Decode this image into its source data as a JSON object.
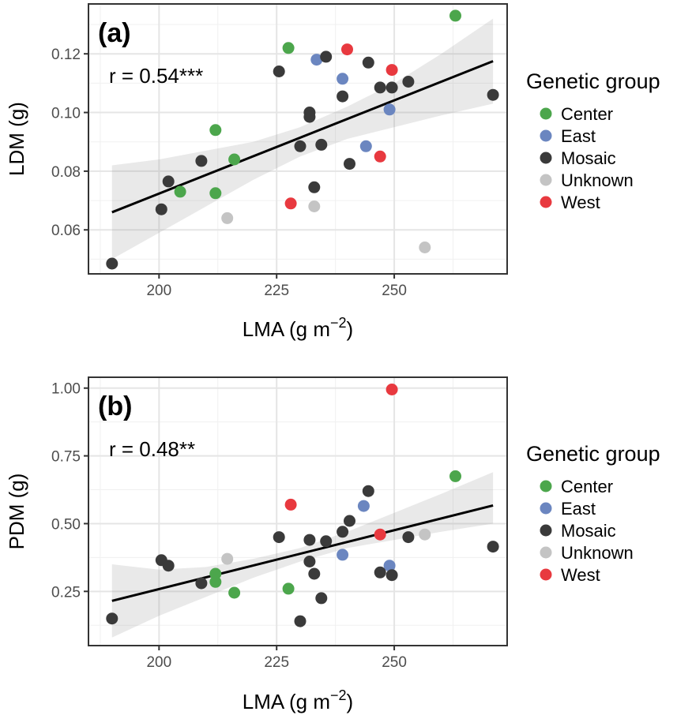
{
  "chart_data": [
    {
      "type": "scatter",
      "panel_label": "(a)",
      "annotation": "r = 0.54***",
      "xlabel": "LMA (g m",
      "xlabel_sup": "−2",
      "xlabel_end": ")",
      "ylabel": "LDM (g)",
      "xlim": [
        185,
        274
      ],
      "ylim": [
        0.045,
        0.137
      ],
      "xticks": [
        200,
        225,
        250
      ],
      "yticks": [
        0.06,
        0.08,
        0.1,
        0.12
      ],
      "ytick_labels": [
        "0.06",
        "0.08",
        "0.10",
        "0.12"
      ],
      "xtick_labels": [
        "200",
        "225",
        "250"
      ],
      "fit": {
        "x": [
          190,
          271
        ],
        "y": [
          0.066,
          0.1175
        ]
      },
      "ci_band": {
        "x": [
          190,
          200,
          210,
          220,
          230,
          240,
          250,
          260,
          271
        ],
        "lower": [
          0.05,
          0.059,
          0.068,
          0.077,
          0.085,
          0.091,
          0.095,
          0.099,
          0.103
        ],
        "upper": [
          0.082,
          0.084,
          0.087,
          0.09,
          0.095,
          0.102,
          0.11,
          0.12,
          0.132
        ]
      },
      "grid": true,
      "points": [
        {
          "x": 263,
          "y": 0.133,
          "group": "Center"
        },
        {
          "x": 227.5,
          "y": 0.122,
          "group": "Center"
        },
        {
          "x": 212,
          "y": 0.094,
          "group": "Center"
        },
        {
          "x": 216,
          "y": 0.084,
          "group": "Center"
        },
        {
          "x": 204.5,
          "y": 0.073,
          "group": "Center"
        },
        {
          "x": 212,
          "y": 0.0725,
          "group": "Center"
        },
        {
          "x": 233.5,
          "y": 0.118,
          "group": "East"
        },
        {
          "x": 239,
          "y": 0.1115,
          "group": "East"
        },
        {
          "x": 249,
          "y": 0.101,
          "group": "East"
        },
        {
          "x": 244,
          "y": 0.0885,
          "group": "East"
        },
        {
          "x": 225.5,
          "y": 0.114,
          "group": "Mosaic"
        },
        {
          "x": 235.5,
          "y": 0.119,
          "group": "Mosaic"
        },
        {
          "x": 244.5,
          "y": 0.117,
          "group": "Mosaic"
        },
        {
          "x": 253,
          "y": 0.1105,
          "group": "Mosaic"
        },
        {
          "x": 247,
          "y": 0.1085,
          "group": "Mosaic"
        },
        {
          "x": 249.5,
          "y": 0.1085,
          "group": "Mosaic"
        },
        {
          "x": 239,
          "y": 0.1055,
          "group": "Mosaic"
        },
        {
          "x": 271,
          "y": 0.106,
          "group": "Mosaic"
        },
        {
          "x": 232,
          "y": 0.1,
          "group": "Mosaic"
        },
        {
          "x": 232,
          "y": 0.0985,
          "group": "Mosaic"
        },
        {
          "x": 230,
          "y": 0.0885,
          "group": "Mosaic"
        },
        {
          "x": 234.5,
          "y": 0.089,
          "group": "Mosaic"
        },
        {
          "x": 209,
          "y": 0.0835,
          "group": "Mosaic"
        },
        {
          "x": 240.5,
          "y": 0.0825,
          "group": "Mosaic"
        },
        {
          "x": 202,
          "y": 0.0765,
          "group": "Mosaic"
        },
        {
          "x": 233,
          "y": 0.0745,
          "group": "Mosaic"
        },
        {
          "x": 200.5,
          "y": 0.067,
          "group": "Mosaic"
        },
        {
          "x": 190,
          "y": 0.0485,
          "group": "Mosaic"
        },
        {
          "x": 214.5,
          "y": 0.064,
          "group": "Unknown"
        },
        {
          "x": 233,
          "y": 0.068,
          "group": "Unknown"
        },
        {
          "x": 256.5,
          "y": 0.054,
          "group": "Unknown"
        },
        {
          "x": 240,
          "y": 0.1215,
          "group": "West"
        },
        {
          "x": 249.5,
          "y": 0.1145,
          "group": "West"
        },
        {
          "x": 247,
          "y": 0.085,
          "group": "West"
        },
        {
          "x": 228,
          "y": 0.069,
          "group": "West"
        }
      ]
    },
    {
      "type": "scatter",
      "panel_label": "(b)",
      "annotation": "r = 0.48**",
      "xlabel": "LMA (g m",
      "xlabel_sup": "−2",
      "xlabel_end": ")",
      "ylabel": "PDM (g)",
      "xlim": [
        185,
        274
      ],
      "ylim": [
        0.05,
        1.04
      ],
      "xticks": [
        200,
        225,
        250
      ],
      "yticks": [
        0.25,
        0.5,
        0.75,
        1.0
      ],
      "ytick_labels": [
        "0.25",
        "0.50",
        "0.75",
        "1.00"
      ],
      "xtick_labels": [
        "200",
        "225",
        "250"
      ],
      "fit": {
        "x": [
          190,
          271
        ],
        "y": [
          0.215,
          0.567
        ]
      },
      "ci_band": {
        "x": [
          190,
          200,
          210,
          220,
          230,
          240,
          250,
          260,
          271
        ],
        "lower": [
          0.08,
          0.16,
          0.23,
          0.3,
          0.36,
          0.41,
          0.44,
          0.47,
          0.5
        ],
        "upper": [
          0.35,
          0.33,
          0.34,
          0.37,
          0.41,
          0.47,
          0.54,
          0.61,
          0.69
        ]
      },
      "grid": true,
      "points": [
        {
          "x": 263,
          "y": 0.675,
          "group": "Center"
        },
        {
          "x": 212,
          "y": 0.315,
          "group": "Center"
        },
        {
          "x": 212,
          "y": 0.285,
          "group": "Center"
        },
        {
          "x": 216,
          "y": 0.245,
          "group": "Center"
        },
        {
          "x": 227.5,
          "y": 0.26,
          "group": "Center"
        },
        {
          "x": 243.5,
          "y": 0.565,
          "group": "East"
        },
        {
          "x": 239,
          "y": 0.385,
          "group": "East"
        },
        {
          "x": 249,
          "y": 0.345,
          "group": "East"
        },
        {
          "x": 244.5,
          "y": 0.62,
          "group": "Mosaic"
        },
        {
          "x": 240.5,
          "y": 0.51,
          "group": "Mosaic"
        },
        {
          "x": 239,
          "y": 0.47,
          "group": "Mosaic"
        },
        {
          "x": 225.5,
          "y": 0.45,
          "group": "Mosaic"
        },
        {
          "x": 232,
          "y": 0.44,
          "group": "Mosaic"
        },
        {
          "x": 235.5,
          "y": 0.435,
          "group": "Mosaic"
        },
        {
          "x": 253,
          "y": 0.45,
          "group": "Mosaic"
        },
        {
          "x": 271,
          "y": 0.415,
          "group": "Mosaic"
        },
        {
          "x": 200.5,
          "y": 0.365,
          "group": "Mosaic"
        },
        {
          "x": 202,
          "y": 0.345,
          "group": "Mosaic"
        },
        {
          "x": 232,
          "y": 0.36,
          "group": "Mosaic"
        },
        {
          "x": 233,
          "y": 0.315,
          "group": "Mosaic"
        },
        {
          "x": 247,
          "y": 0.32,
          "group": "Mosaic"
        },
        {
          "x": 249.5,
          "y": 0.31,
          "group": "Mosaic"
        },
        {
          "x": 209,
          "y": 0.28,
          "group": "Mosaic"
        },
        {
          "x": 234.5,
          "y": 0.225,
          "group": "Mosaic"
        },
        {
          "x": 190,
          "y": 0.15,
          "group": "Mosaic"
        },
        {
          "x": 230,
          "y": 0.14,
          "group": "Mosaic"
        },
        {
          "x": 214.5,
          "y": 0.37,
          "group": "Unknown"
        },
        {
          "x": 256.5,
          "y": 0.46,
          "group": "Unknown"
        },
        {
          "x": 249.5,
          "y": 0.995,
          "group": "West"
        },
        {
          "x": 228,
          "y": 0.57,
          "group": "West"
        },
        {
          "x": 247,
          "y": 0.46,
          "group": "West"
        }
      ]
    }
  ],
  "legend": {
    "title": "Genetic group",
    "items": [
      {
        "label": "Center",
        "color": "#4ca64c"
      },
      {
        "label": "East",
        "color": "#6b86c0"
      },
      {
        "label": "Mosaic",
        "color": "#3a3a3a"
      },
      {
        "label": "Unknown",
        "color": "#c4c4c4"
      },
      {
        "label": "West",
        "color": "#e8393f"
      }
    ]
  }
}
